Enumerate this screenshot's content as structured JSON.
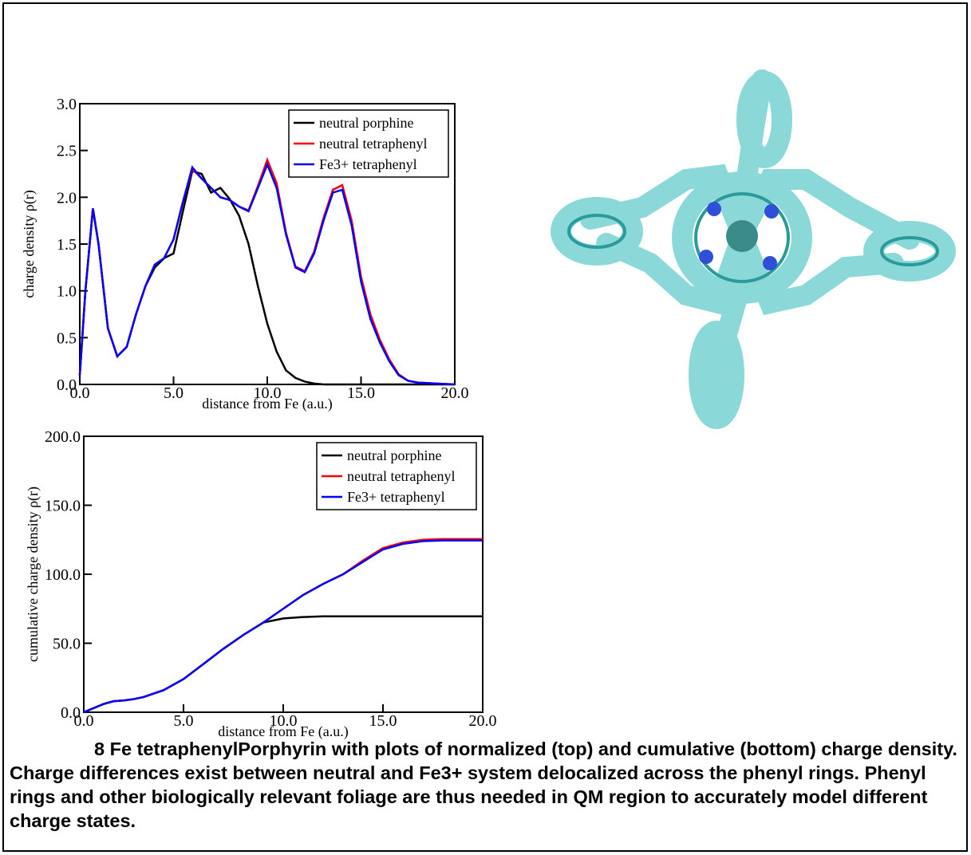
{
  "chart_data": [
    {
      "type": "line",
      "xlabel": "distance from Fe (a.u.)",
      "ylabel": "charge density ρ(r)",
      "x": [
        0,
        0.3,
        0.7,
        1.0,
        1.5,
        2.0,
        2.5,
        3.0,
        3.5,
        4.0,
        4.5,
        5.0,
        5.5,
        6.0,
        6.5,
        7.0,
        7.5,
        8.0,
        8.5,
        9.0,
        9.5,
        10.0,
        10.5,
        11.0,
        11.5,
        12.0,
        12.5,
        13.0,
        13.5,
        14.0,
        14.5,
        15.0,
        15.5,
        16.0,
        16.5,
        17.0,
        17.5,
        18.0,
        19.0,
        20.0
      ],
      "series": [
        {
          "name": "neutral porphine",
          "color": "#000000",
          "values": [
            0.1,
            1.0,
            1.88,
            1.5,
            0.6,
            0.3,
            0.4,
            0.75,
            1.05,
            1.25,
            1.35,
            1.4,
            1.85,
            2.28,
            2.25,
            2.05,
            2.1,
            1.98,
            1.8,
            1.5,
            1.05,
            0.65,
            0.35,
            0.15,
            0.07,
            0.03,
            0.01,
            0,
            0,
            0,
            0,
            0,
            0,
            0,
            0,
            0,
            0,
            0,
            0,
            0
          ]
        },
        {
          "name": "neutral tetraphenyl",
          "color": "#ff0000",
          "values": [
            0.1,
            1.0,
            1.88,
            1.5,
            0.6,
            0.3,
            0.4,
            0.75,
            1.05,
            1.28,
            1.35,
            1.55,
            1.95,
            2.3,
            2.2,
            2.1,
            2.0,
            1.97,
            1.9,
            1.86,
            2.12,
            2.4,
            2.15,
            1.62,
            1.26,
            1.21,
            1.42,
            1.78,
            2.08,
            2.13,
            1.75,
            1.15,
            0.75,
            0.48,
            0.27,
            0.11,
            0.04,
            0.02,
            0.01,
            0
          ]
        },
        {
          "name": "Fe3+ tetraphenyl",
          "color": "#0000ff",
          "values": [
            0.1,
            1.0,
            1.88,
            1.5,
            0.6,
            0.3,
            0.4,
            0.75,
            1.05,
            1.28,
            1.35,
            1.55,
            1.95,
            2.32,
            2.2,
            2.1,
            2.0,
            1.97,
            1.9,
            1.85,
            2.1,
            2.35,
            2.1,
            1.6,
            1.25,
            1.2,
            1.4,
            1.75,
            2.05,
            2.08,
            1.7,
            1.1,
            0.7,
            0.45,
            0.25,
            0.1,
            0.04,
            0.02,
            0.01,
            0
          ]
        }
      ],
      "xlim": [
        0,
        20
      ],
      "ylim": [
        0,
        3
      ],
      "xticks": [
        {
          "value": 0,
          "label": "0.0"
        },
        {
          "value": 5,
          "label": "5.0"
        },
        {
          "value": 10,
          "label": "10.0"
        },
        {
          "value": 15,
          "label": "15.0"
        },
        {
          "value": 20,
          "label": "20.0"
        }
      ],
      "yticks": [
        {
          "value": 0,
          "label": "0.0"
        },
        {
          "value": 0.5,
          "label": "0.5"
        },
        {
          "value": 1,
          "label": "1.0"
        },
        {
          "value": 1.5,
          "label": "1.5"
        },
        {
          "value": 2,
          "label": "2.0"
        },
        {
          "value": 2.5,
          "label": "2.5"
        },
        {
          "value": 3,
          "label": "3.0"
        }
      ],
      "legend": "upper right"
    },
    {
      "type": "line",
      "xlabel": "distance from Fe (a.u.)",
      "ylabel": "cumulative charge density ρ(r)",
      "x": [
        0,
        0.5,
        1,
        1.5,
        2,
        2.5,
        3,
        4,
        5,
        6,
        7,
        8,
        9,
        10,
        11,
        12,
        13,
        14,
        15,
        16,
        17,
        18,
        19,
        20
      ],
      "series": [
        {
          "name": "neutral porphine",
          "color": "#000000",
          "values": [
            0,
            3,
            6,
            8,
            8.5,
            9.5,
            11,
            16,
            24,
            35,
            46,
            56,
            65,
            68,
            69,
            69.5,
            69.5,
            69.5,
            69.5,
            69.5,
            69.5,
            69.5,
            69.5,
            69.5
          ]
        },
        {
          "name": "neutral tetraphenyl",
          "color": "#ff0000",
          "values": [
            0,
            3,
            6,
            8,
            8.5,
            9.5,
            11,
            16,
            24,
            35,
            46,
            56,
            65,
            75,
            85,
            93,
            100,
            110,
            119,
            123,
            125,
            125.5,
            125.5,
            125.5
          ]
        },
        {
          "name": "Fe3+ tetraphenyl",
          "color": "#0000ff",
          "values": [
            0,
            3,
            6,
            8,
            8.5,
            9.5,
            11,
            16,
            24,
            35,
            46,
            56,
            65,
            75,
            85,
            93,
            100,
            109,
            118,
            122,
            124,
            124.5,
            124.5,
            124.5
          ]
        }
      ],
      "xlim": [
        0,
        20
      ],
      "ylim": [
        0,
        200
      ],
      "xticks": [
        {
          "value": 0,
          "label": "0.0"
        },
        {
          "value": 5,
          "label": "5.0"
        },
        {
          "value": 10,
          "label": "10.0"
        },
        {
          "value": 15,
          "label": "15.0"
        },
        {
          "value": 20,
          "label": "20.0"
        }
      ],
      "yticks": [
        {
          "value": 0,
          "label": "0.0"
        },
        {
          "value": 50,
          "label": "50.0"
        },
        {
          "value": 100,
          "label": "100.0"
        },
        {
          "value": 150,
          "label": "150.0"
        },
        {
          "value": 200,
          "label": "200.0"
        }
      ],
      "legend": "upper right"
    }
  ],
  "caption": "8  Fe tetraphenylPorphyrin with plots of normalized (top) and cumulative (bottom) charge density.  Charge differences exist between neutral and Fe3+ system delocalized across the phenyl rings.  Phenyl rings and other biologically relevant foliage are thus needed in QM region to accurately model different charge states."
}
